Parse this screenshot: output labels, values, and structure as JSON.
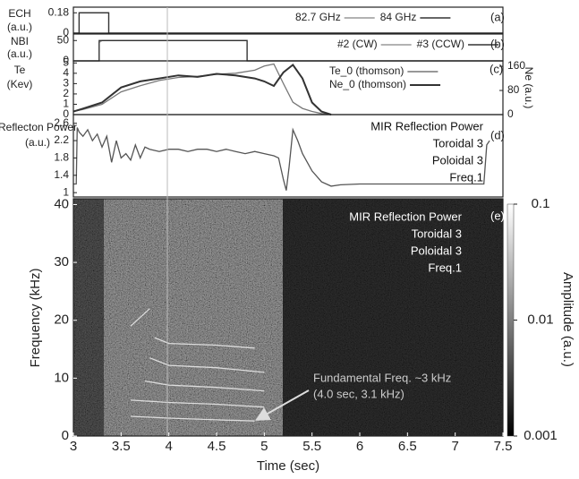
{
  "chart_data": [
    {
      "type": "line",
      "ylabel": [
        "ECH",
        "(a.u.)"
      ],
      "panel_label": "(a)",
      "xlim": [
        3,
        7.5
      ],
      "ylim": [
        0,
        0.23
      ],
      "yticks": [
        0,
        0.18
      ],
      "x": [
        3,
        3.06,
        3.06,
        3.37,
        3.37,
        7.5
      ],
      "series": [
        {
          "name": "82.7 GHz",
          "color": "#999999",
          "values": [
            0,
            0,
            0.18,
            0.18,
            0,
            0
          ]
        },
        {
          "name": "84 GHz",
          "color": "#333333",
          "values": [
            0,
            0,
            0.18,
            0.18,
            0,
            0
          ]
        }
      ]
    },
    {
      "type": "line",
      "ylabel": [
        "NBI",
        "(a.u.)"
      ],
      "panel_label": "(b)",
      "xlim": [
        3,
        7.5
      ],
      "ylim": [
        0,
        66
      ],
      "yticks": [
        0,
        50
      ],
      "x": [
        3,
        3.27,
        3.27,
        3.3,
        4.82,
        4.82,
        7.5
      ],
      "series": [
        {
          "name": "#2 (CW)",
          "color": "#999999",
          "values": [
            0,
            0,
            45,
            50,
            50,
            0,
            0
          ]
        },
        {
          "name": "#3 (CCW)",
          "color": "#333333",
          "values": [
            0,
            0,
            50,
            50,
            50,
            0,
            0
          ]
        }
      ]
    },
    {
      "type": "line",
      "ylabel": [
        "Te",
        "(Kev)"
      ],
      "y2label": "Ne (a.u.)",
      "panel_label": "(c)",
      "xlim": [
        3,
        7.5
      ],
      "ylim": [
        0,
        5.2
      ],
      "yticks": [
        0,
        1,
        2,
        3,
        4,
        5
      ],
      "y2lim": [
        0,
        178
      ],
      "y2ticks": [
        0,
        80,
        160
      ],
      "x": [
        3.0,
        3.1,
        3.3,
        3.5,
        3.7,
        3.9,
        4.1,
        4.3,
        4.5,
        4.7,
        4.9,
        5.0,
        5.1,
        5.2,
        5.3,
        5.4,
        5.5,
        5.6,
        5.7
      ],
      "series": [
        {
          "name": "Te_0 (thomson)",
          "color": "#777777",
          "values": [
            0.3,
            0.5,
            1.0,
            2.2,
            2.8,
            3.3,
            3.6,
            3.7,
            3.9,
            4.0,
            4.3,
            4.7,
            4.9,
            3.0,
            1.2,
            0.6,
            0.3,
            0.1,
            0
          ]
        },
        {
          "name": "Ne_0 (thomson)",
          "color": "#333333",
          "axis": "y2",
          "values": [
            10,
            20,
            40,
            90,
            110,
            120,
            130,
            125,
            135,
            130,
            120,
            110,
            95,
            140,
            165,
            120,
            40,
            10,
            0
          ]
        }
      ]
    },
    {
      "type": "line",
      "ylabel": [
        "Reflecton Power",
        "(a.u.)"
      ],
      "panel_label": "(d)",
      "texts": [
        "MIR Reflection Power",
        "Toroidal 3",
        "Poloidal 3",
        "Freq.1"
      ],
      "xlim": [
        3,
        7.5
      ],
      "ylim": [
        0.9,
        2.8
      ],
      "yticks": [
        1,
        1.4,
        1.8,
        2.2,
        2.6
      ],
      "x": [
        3.0,
        3.03,
        3.04,
        3.06,
        3.1,
        3.15,
        3.2,
        3.25,
        3.3,
        3.35,
        3.4,
        3.45,
        3.5,
        3.55,
        3.6,
        3.65,
        3.7,
        3.75,
        3.8,
        3.9,
        4.0,
        4.1,
        4.2,
        4.3,
        4.4,
        4.5,
        4.6,
        4.7,
        4.8,
        4.9,
        5.0,
        5.1,
        5.15,
        5.2,
        5.23,
        5.26,
        5.3,
        5.35,
        5.4,
        5.5,
        5.6,
        5.7,
        5.8,
        6.0,
        6.5,
        7.0,
        7.3,
        7.33,
        7.36
      ],
      "series": [
        {
          "color": "#555555",
          "values": [
            1.2,
            1.2,
            2.5,
            2.4,
            2.3,
            2.45,
            2.2,
            2.35,
            2.05,
            2.3,
            1.7,
            2.2,
            1.8,
            1.9,
            1.75,
            2.1,
            1.8,
            2.05,
            2.0,
            1.95,
            2.0,
            2.0,
            1.95,
            2.0,
            2.0,
            1.95,
            2.0,
            1.95,
            1.9,
            1.95,
            1.9,
            1.85,
            1.8,
            1.3,
            1.05,
            1.6,
            2.45,
            2.2,
            1.9,
            1.5,
            1.25,
            1.15,
            1.18,
            1.2,
            1.2,
            1.2,
            1.2,
            2.1,
            2.2
          ]
        }
      ]
    },
    {
      "type": "spectrogram",
      "ylabel": [
        "Frequency (kHz)"
      ],
      "xlabel": "Time (sec)",
      "panel_label": "(e)",
      "texts": [
        "MIR Reflection Power",
        "Toroidal 3",
        "Poloidal 3",
        "Freq.1"
      ],
      "xlim": [
        3,
        7.5
      ],
      "xticks": [
        3,
        3.5,
        4,
        4.5,
        5,
        5.5,
        6,
        6.5,
        7,
        7.5
      ],
      "ylim": [
        0,
        41
      ],
      "yticks": [
        0,
        10,
        20,
        30,
        40
      ],
      "colorbar": {
        "label": "Amplitude (a.u.)",
        "lim": [
          0.001,
          0.1
        ],
        "ticks": [
          0.001,
          0.01,
          0.1
        ],
        "log": true
      },
      "annotation": {
        "text": [
          "Fundamental Freq. ~3 kHz",
          "(4.0 sec, 3.1 kHz)"
        ],
        "x": 4.92,
        "y": 2.8
      },
      "series": [
        {
          "color": "#dddddd",
          "x": [
            3.6,
            4.0,
            4.5,
            4.9
          ],
          "values": [
            3.4,
            3.1,
            2.8,
            2.6
          ]
        },
        {
          "color": "#dddddd",
          "x": [
            3.6,
            4.0,
            4.5,
            5.0
          ],
          "values": [
            6.2,
            5.8,
            5.5,
            5.0
          ]
        },
        {
          "color": "#dddddd",
          "x": [
            3.75,
            4.0,
            4.5,
            5.0
          ],
          "values": [
            9.5,
            8.8,
            8.4,
            7.8
          ]
        },
        {
          "color": "#dddddd",
          "x": [
            3.8,
            4.0,
            4.5,
            5.0
          ],
          "values": [
            13.5,
            12.2,
            11.8,
            11.0
          ]
        },
        {
          "color": "#dddddd",
          "x": [
            3.85,
            4.0,
            4.5,
            4.9
          ],
          "values": [
            17,
            16.0,
            15.7,
            15.2
          ]
        },
        {
          "color": "#dddddd",
          "x": [
            3.6,
            3.8
          ],
          "values": [
            19,
            22
          ]
        }
      ]
    }
  ]
}
